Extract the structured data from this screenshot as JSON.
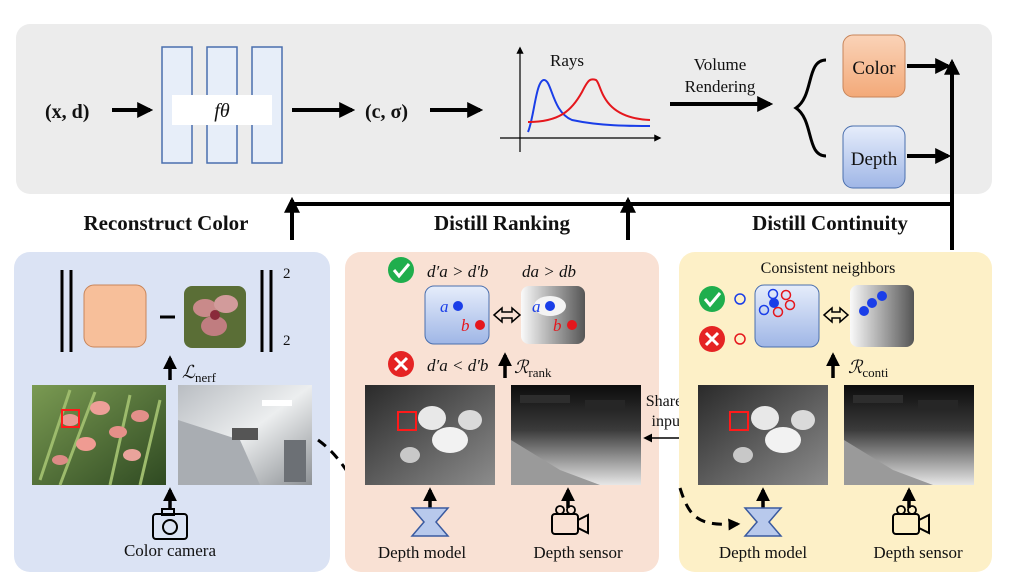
{
  "top_panel": {
    "input_label": "(x, d)",
    "network_label": "fθ",
    "output_label": "(c, σ)",
    "rays_label": "Rays",
    "volume_rendering_line1": "Volume",
    "volume_rendering_line2": "Rendering",
    "color_label": "Color",
    "depth_label": "Depth"
  },
  "section_titles": {
    "reconstruct": "Reconstruct Color",
    "ranking": "Distill Ranking",
    "continuity": "Distill Continuity"
  },
  "left_panel": {
    "exponent_top": "2",
    "exponent_bottom": "2",
    "loss_label": "ℒ",
    "loss_sub": "nerf",
    "camera_label": "Color camera"
  },
  "middle_panel": {
    "good_rel_left": "d′a > d′b",
    "good_rel_right": "da > db",
    "bad_rel": "d′a < d′b",
    "point_a": "a",
    "point_b": "b",
    "rank_label": "ℛ",
    "rank_sub": "rank",
    "depth_model_label": "Depth model",
    "depth_sensor_label": "Depth sensor"
  },
  "shared_input": {
    "line1": "Shared",
    "line2": "input"
  },
  "right_panel": {
    "consistent_label": "Consistent neighbors",
    "conti_label": "ℛ",
    "conti_sub": "conti",
    "depth_model_label": "Depth model",
    "depth_sensor_label": "Depth sensor"
  },
  "colors": {
    "top_bg": "#ececec",
    "left_bg": "#dbe3f4",
    "middle_bg": "#f9e1d4",
    "right_bg": "#fdf0c7",
    "color_box": "#f7bf9a",
    "depth_box": "#b8c9ec",
    "good": "#1fae4d",
    "bad": "#e52424",
    "blue": "#1a3ee8",
    "red": "#e5171d"
  }
}
